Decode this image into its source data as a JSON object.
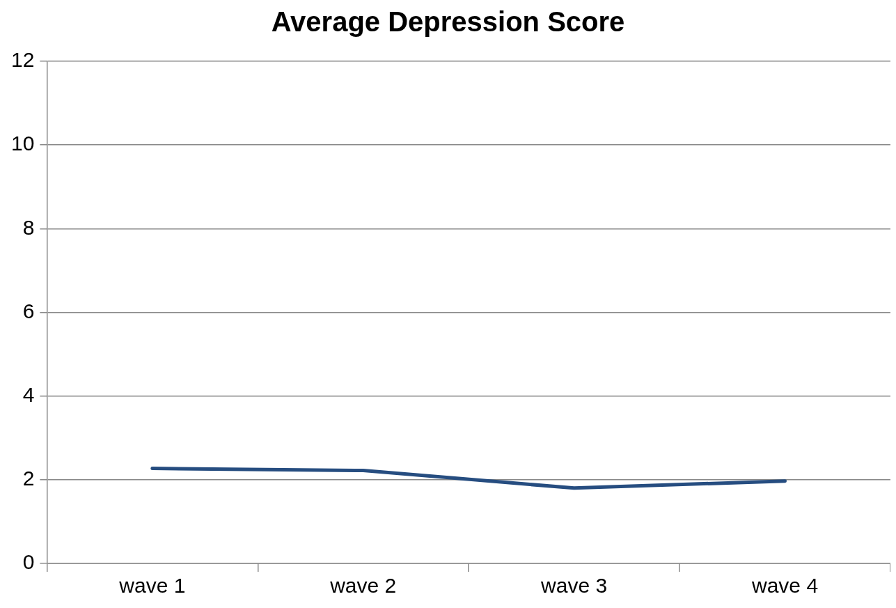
{
  "chart_data": {
    "type": "line",
    "title": "Average Depression Score",
    "categories": [
      "wave 1",
      "wave 2",
      "wave 3",
      "wave 4"
    ],
    "series": [
      {
        "color": "#264d80",
        "values": [
          2.27,
          2.22,
          1.8,
          1.97
        ]
      }
    ],
    "ylim": [
      0,
      12
    ],
    "yticks": [
      0,
      2,
      4,
      6,
      8,
      10,
      12
    ],
    "grid": "y",
    "legend": false,
    "marker": "none",
    "line_style": "solid"
  }
}
